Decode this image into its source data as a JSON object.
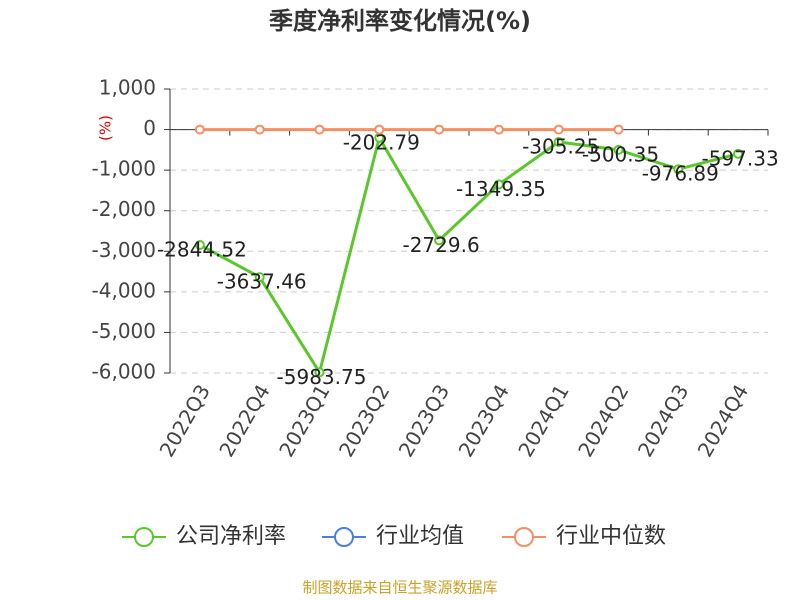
{
  "chart_data": {
    "type": "line",
    "title": "季度净利率变化情况(%)",
    "y_label": "(%)",
    "categories": [
      "2022Q3",
      "2022Q4",
      "2023Q1",
      "2023Q2",
      "2023Q3",
      "2023Q4",
      "2024Q1",
      "2024Q2",
      "2024Q3",
      "2024Q4"
    ],
    "series": [
      {
        "name": "公司净利率",
        "color": "#5cc72d",
        "values": [
          -2844.52,
          -3637.46,
          -5983.75,
          -202.79,
          -2729.6,
          -1349.35,
          -305.25,
          -500.35,
          -976.89,
          -597.33
        ],
        "labels": true
      },
      {
        "name": "行业均值",
        "color": "#4a7fe0",
        "values": [
          null,
          null,
          null,
          null,
          null,
          null,
          null,
          null,
          null,
          null
        ]
      },
      {
        "name": "行业中位数",
        "color": "#f48f64",
        "values": [
          0,
          0,
          0,
          0,
          0,
          0,
          0,
          0,
          null,
          null
        ]
      }
    ],
    "ylim": [
      -6000,
      1000
    ],
    "yticks": [
      {
        "value": 1000,
        "label": "1,000"
      },
      0,
      {
        "value": -1000,
        "label": "-1,000"
      },
      {
        "value": -2000,
        "label": "-2,000"
      },
      {
        "value": -3000,
        "label": "-3,000"
      },
      {
        "value": -4000,
        "label": "-4,000"
      },
      {
        "value": -5000,
        "label": "-5,000"
      },
      {
        "value": -6000,
        "label": "-6,000"
      }
    ],
    "grid": true,
    "source": "制图数据来自恒生聚源数据库"
  }
}
